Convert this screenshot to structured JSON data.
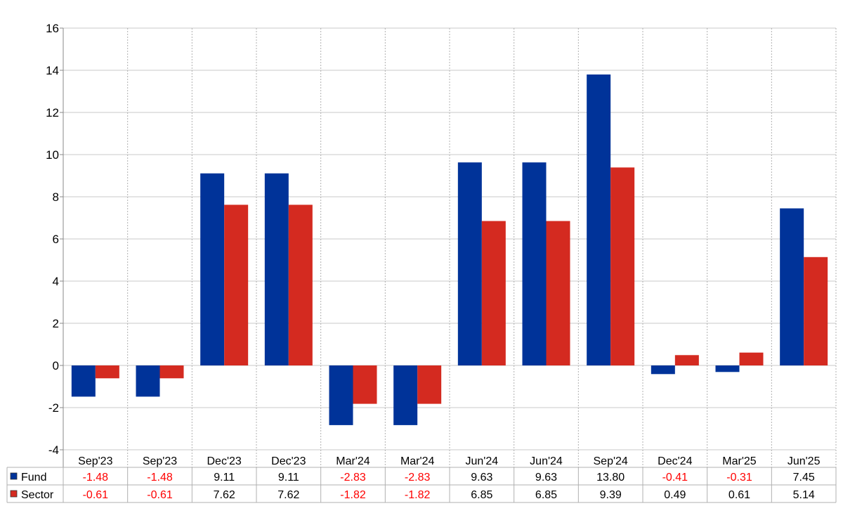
{
  "chart_data": {
    "type": "bar",
    "categories": [
      "Sep'23",
      "Sep'23",
      "Dec'23",
      "Dec'23",
      "Mar'24",
      "Mar'24",
      "Jun'24",
      "Jun'24",
      "Sep'24",
      "Dec'24",
      "Mar'25",
      "Jun'25"
    ],
    "series": [
      {
        "name": "Fund",
        "color": "#003399",
        "values": [
          -1.48,
          -1.48,
          9.11,
          9.11,
          -2.83,
          -2.83,
          9.63,
          9.63,
          13.8,
          -0.41,
          -0.31,
          7.45
        ],
        "labels": [
          "-1.48",
          "-1.48",
          "9.11",
          "9.11",
          "-2.83",
          "-2.83",
          "9.63",
          "9.63",
          "13.80",
          "-0.41",
          "-0.31",
          "7.45"
        ]
      },
      {
        "name": "Sector",
        "color": "#d42a20",
        "values": [
          -0.61,
          -0.61,
          7.62,
          7.62,
          -1.82,
          -1.82,
          6.85,
          6.85,
          9.39,
          0.49,
          0.61,
          5.14
        ],
        "labels": [
          "-0.61",
          "-0.61",
          "7.62",
          "7.62",
          "-1.82",
          "-1.82",
          "6.85",
          "6.85",
          "9.39",
          "0.49",
          "0.61",
          "5.14"
        ]
      }
    ],
    "ylim": [
      -4,
      16
    ],
    "yticks": [
      "-4",
      "-2",
      "0",
      "2",
      "4",
      "6",
      "8",
      "10",
      "12",
      "14",
      "16"
    ],
    "grid": true,
    "legend": "data table below chart",
    "negative_value_color": "#ff0000",
    "positive_value_color": "#000000"
  }
}
